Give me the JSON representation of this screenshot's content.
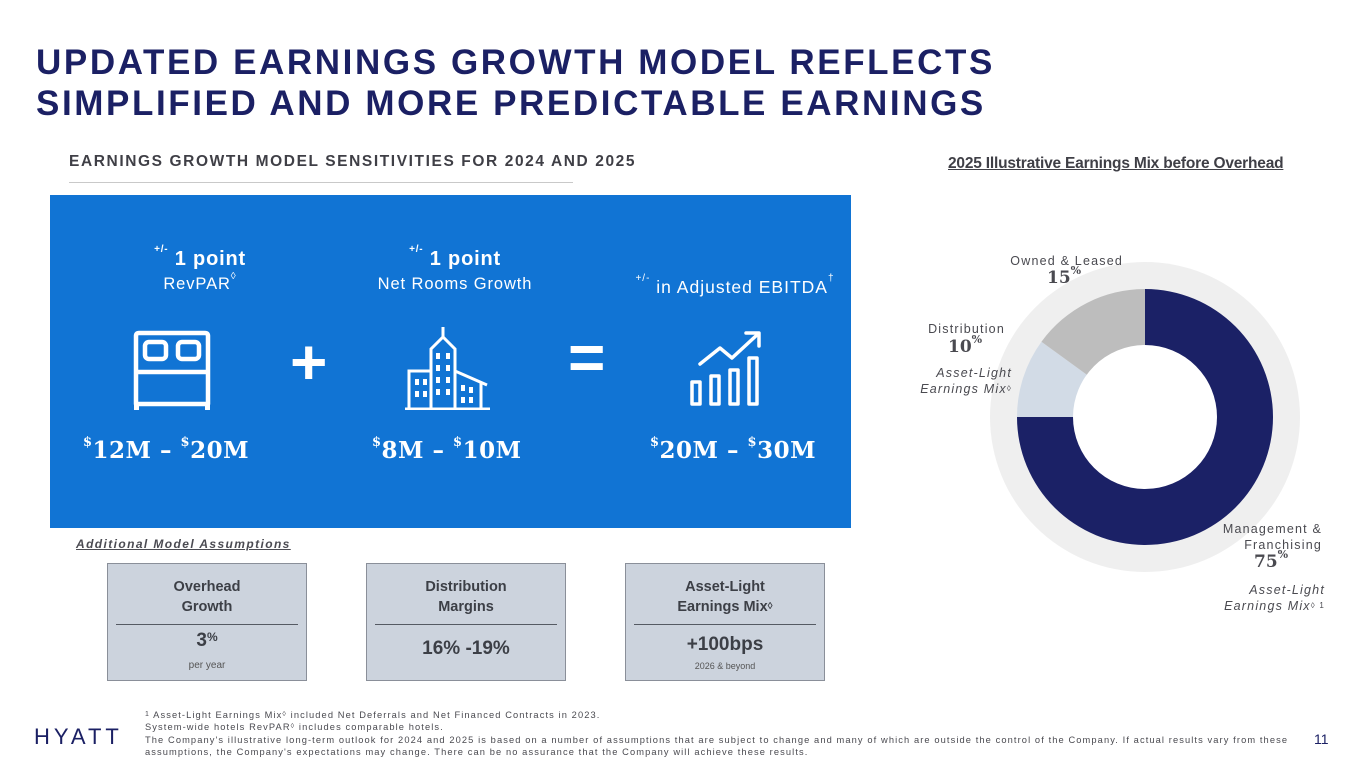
{
  "title_line1": "UPDATED EARNINGS GROWTH MODEL REFLECTS",
  "title_line2": "SIMPLIFIED AND MORE PREDICTABLE EARNINGS",
  "subtitle": "EARNINGS GROWTH MODEL SENSITIVITIES FOR 2024 AND 2025",
  "sensitivities": {
    "revpar": {
      "prefix": "+/-",
      "point": "1 point",
      "metric": "RevPAR",
      "mark": "◊",
      "icon": "bed-icon",
      "range_low": "12M",
      "range_high": "20M"
    },
    "net_rooms": {
      "prefix": "+/-",
      "point": "1 point",
      "metric": "Net Rooms Growth",
      "icon": "buildings-icon",
      "range_low": "8M",
      "range_high": "10M"
    },
    "ebitda": {
      "prefix": "+/-",
      "metric": "in Adjusted EBITDA",
      "mark": "†",
      "icon": "growth-chart-icon",
      "range_low": "20M",
      "range_high": "30M"
    },
    "currency": "$",
    "dash": "–",
    "plus_symbol": "+",
    "equals_symbol": "="
  },
  "assumptions": {
    "heading": "Additional Model Assumptions",
    "overhead": {
      "line1": "Overhead",
      "line2": "Growth",
      "value": "3",
      "unit": "%",
      "note": "per year"
    },
    "distribution": {
      "line1": "Distribution",
      "line2": "Margins",
      "value": "16% -19%"
    },
    "asset_light": {
      "line1": "Asset-Light",
      "line2": "Earnings Mix",
      "mark": "◊",
      "value": "+100bps",
      "note": "2026 & beyond"
    }
  },
  "chart_data": {
    "type": "pie",
    "title": "2025 Illustrative Earnings Mix before Overhead",
    "categories": [
      "Management & Franchising",
      "Distribution",
      "Owned & Leased"
    ],
    "values": [
      75,
      10,
      15
    ],
    "colors": [
      "#1b2166",
      "#d2dbe6",
      "#bdbdbd"
    ],
    "ring_color": "#efefef",
    "labels": {
      "owned": {
        "name": "Owned & Leased",
        "value": "15",
        "unit": "%"
      },
      "distribution": {
        "name": "Distribution",
        "value": "10",
        "unit": "%",
        "note_line1": "Asset-Light",
        "note_line2": "Earnings Mix",
        "mark": "◊"
      },
      "management": {
        "name_line1": "Management &",
        "name_line2": "Franchising",
        "value": "75",
        "unit": "%",
        "note_line1": "Asset-Light",
        "note_line2": "Earnings Mix",
        "mark": "◊ 1"
      }
    }
  },
  "footnotes": {
    "note1_num": "1",
    "note1_a": "Asset-Light Earnings Mix",
    "note1_mark": "◊",
    "note1_b": "included Net Deferrals and Net Financed Contracts in 2023.",
    "note2_a": "System-wide hotels RevPAR",
    "note2_mark": "◊",
    "note2_b": "includes comparable hotels.",
    "note3": "The Company's illustrative long-term outlook for 2024 and 2025 is based on a number of assumptions that are subject to change and many of which are outside the control of the Company. If actual results vary from these assumptions, the Company's expectations may change. There can be no assurance that the Company will achieve these results."
  },
  "logo_text": "HYATT",
  "page_number": "11"
}
